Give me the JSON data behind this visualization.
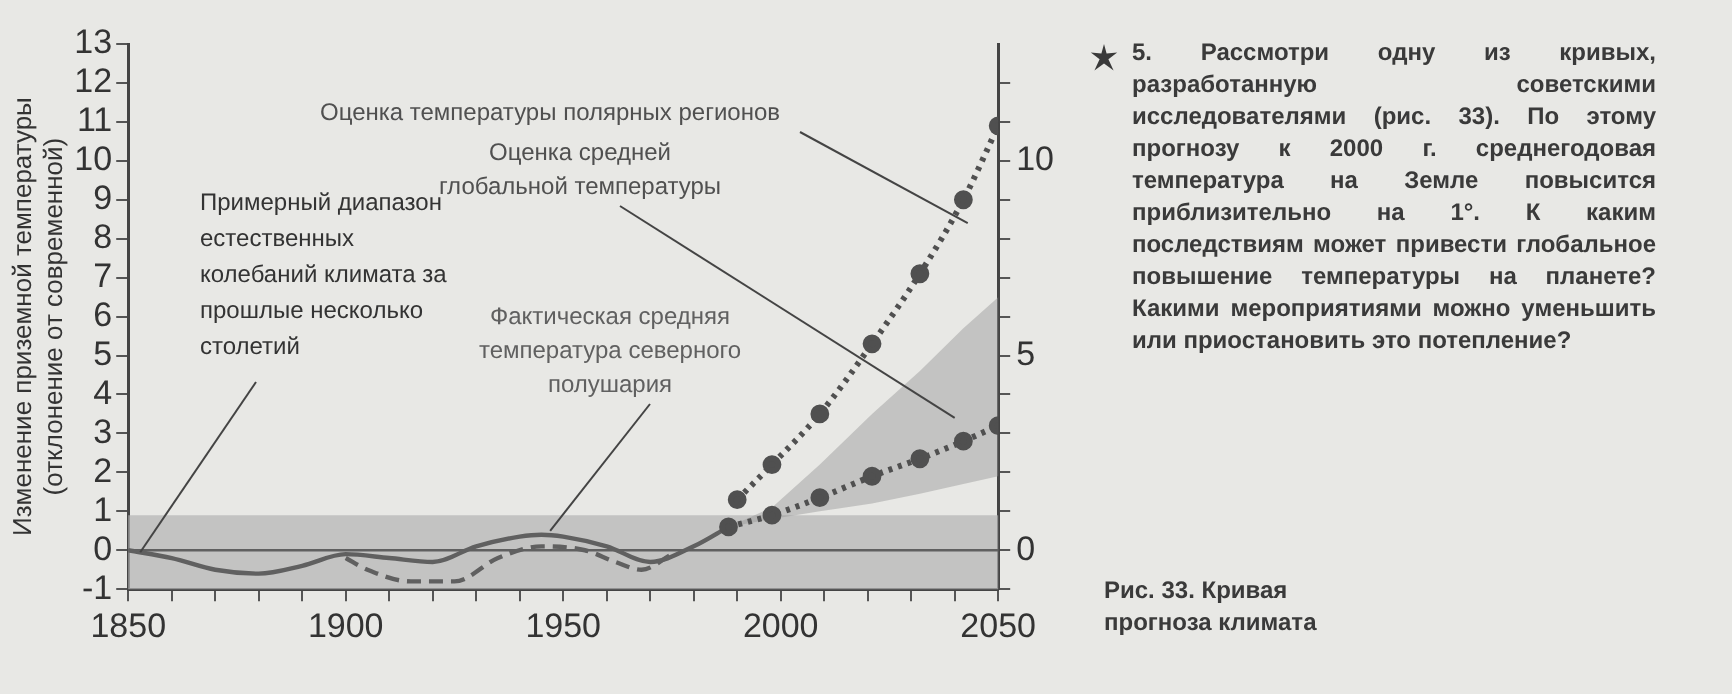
{
  "chart_data": {
    "type": "line",
    "ylabel": "Изменение приземной температуры (отклонение от современной)",
    "xlim": [
      1850,
      2050
    ],
    "xticks": [
      1850,
      {
        "value": 1860,
        "label": null
      },
      {
        "value": 1870,
        "label": null
      },
      {
        "value": 1880,
        "label": null
      },
      {
        "value": 1890,
        "label": null
      },
      1900,
      {
        "value": 1910,
        "label": null
      },
      {
        "value": 1920,
        "label": null
      },
      {
        "value": 1930,
        "label": null
      },
      {
        "value": 1940,
        "label": null
      },
      1950,
      {
        "value": 1960,
        "label": null
      },
      {
        "value": 1970,
        "label": null
      },
      {
        "value": 1980,
        "label": null
      },
      {
        "value": 1990,
        "label": null
      },
      2000,
      {
        "value": 2010,
        "label": null
      },
      {
        "value": 2020,
        "label": null
      },
      {
        "value": 2030,
        "label": null
      },
      {
        "value": 2040,
        "label": null
      },
      2050
    ],
    "ylim": [
      -1,
      13
    ],
    "yticks": [
      -1,
      0,
      1,
      2,
      3,
      4,
      5,
      6,
      7,
      8,
      9,
      10,
      11,
      12,
      13
    ],
    "y2lim": [
      -1,
      13
    ],
    "y2ticks": [
      {
        "value": -1,
        "label": null
      },
      0,
      {
        "value": 1,
        "label": null
      },
      {
        "value": 2,
        "label": null
      },
      {
        "value": 3,
        "label": null
      },
      {
        "value": 4,
        "label": null
      },
      5,
      {
        "value": 6,
        "label": null
      },
      {
        "value": 7,
        "label": null
      },
      {
        "value": 8,
        "label": null
      },
      {
        "value": 9,
        "label": null
      },
      10,
      {
        "value": 11,
        "label": null
      },
      {
        "value": 12,
        "label": null
      }
    ],
    "grid": false,
    "legend": false,
    "series": [
      {
        "name": "Оценка температуры полярных регионов",
        "color": "#505050",
        "marker": "circle",
        "line_style": "dotted",
        "x": [
          1990,
          1998,
          2009,
          2021,
          2032,
          2042,
          2050
        ],
        "values": [
          1.3,
          2.2,
          3.5,
          5.3,
          7.1,
          9.0,
          10.9
        ]
      },
      {
        "name": "Оценка средней глобальной температуры",
        "color": "#505050",
        "marker": "circle",
        "line_style": "dotted",
        "x": [
          1988,
          1998,
          2009,
          2021,
          2032,
          2042,
          2050
        ],
        "values": [
          0.6,
          0.9,
          1.35,
          1.9,
          2.35,
          2.8,
          3.2
        ],
        "lower": [
          0.6,
          0.8,
          1.0,
          1.2,
          1.45,
          1.7,
          1.9
        ],
        "upper": [
          0.6,
          1.1,
          2.2,
          3.5,
          4.6,
          5.7,
          6.5
        ]
      },
      {
        "color": "#606060",
        "marker": "none",
        "line_style": "solid",
        "x": [
          1850,
          1860,
          1870,
          1880,
          1890,
          1900,
          1910,
          1920,
          1930,
          1940,
          1945,
          1950,
          1960,
          1970,
          1980,
          1988
        ],
        "values": [
          0,
          -0.2,
          -0.5,
          -0.6,
          -0.4,
          -0.1,
          -0.2,
          -0.3,
          0.1,
          0.35,
          0.4,
          0.35,
          0.1,
          -0.3,
          0.1,
          0.6
        ]
      },
      {
        "name": "Фактическая средняя температура северного полушария",
        "color": "#606060",
        "marker": "none",
        "line_style": "dashed",
        "x": [
          1900,
          1905,
          1915,
          1925,
          1935,
          1945,
          1955,
          1962,
          1968,
          1975
        ],
        "values": [
          -0.2,
          -0.5,
          -0.8,
          -0.8,
          -0.2,
          0.1,
          0.0,
          -0.3,
          -0.5,
          -0.1
        ]
      }
    ],
    "bands": [
      {
        "axis": "y",
        "from": -1,
        "to": 0.9,
        "label": "Примерный диапазон естественных колебаний климата за прошлые несколько столетий",
        "color": "#b4b4b4"
      }
    ],
    "ref_lines": [
      {
        "axis": "y",
        "value": 0,
        "color": "#606060"
      }
    ],
    "annotations": [
      "5. Рассмотри одну из кривых, разработанную советскими исследователями (рис. 33). По этому прогнозу к 2000 г. среднегодовая температура на Земле повысится приблизительно на 1°. К каким последствиям может привести глобальное повышение температуры на планете? Какими мероприятиями можно уменьшить или приостановить это потепление?",
      "Рис. 33. Кривая прогноза климата"
    ]
  }
}
